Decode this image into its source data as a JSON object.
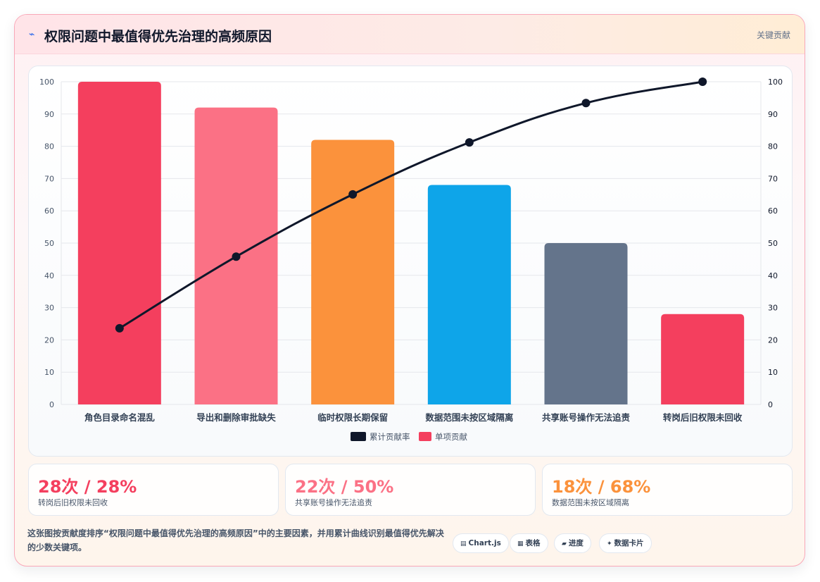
{
  "header": {
    "icon": "lightning-icon",
    "title": "权限问题中最值得优先治理的高频原因",
    "tag": "关键贡献"
  },
  "chart_data": {
    "type": "bar",
    "categories": [
      "角色目录命名混乱",
      "导出和删除审批缺失",
      "临时权限长期保留",
      "数据范围未按区域隔离",
      "共享账号操作无法追责",
      "转岗后旧权限未回收"
    ],
    "series": [
      {
        "name": "单项贡献",
        "type": "bar",
        "values": [
          100,
          92,
          82,
          68,
          50,
          28
        ],
        "colors": [
          "#f43f5e",
          "#fb7185",
          "#fb923c",
          "#0ea5e9",
          "#64748b",
          "#f43f5e"
        ]
      },
      {
        "name": "累计贡献率",
        "type": "line",
        "values": [
          23.6,
          45.8,
          65.1,
          81.2,
          93.4,
          100
        ],
        "color": "#0f172a"
      }
    ],
    "ylim": [
      0,
      100
    ],
    "y2lim": [
      0,
      100
    ],
    "yticks": [
      0,
      10,
      20,
      30,
      40,
      50,
      60,
      70,
      80,
      90,
      100
    ],
    "grid": true,
    "legend": {
      "placement": "bottom",
      "items": [
        {
          "label": "累计贡献率",
          "color": "#0f172a"
        },
        {
          "label": "单项贡献",
          "color": "#f43f5e"
        }
      ]
    }
  },
  "stats": [
    {
      "big": "28次 / 28%",
      "sub": "转岗后旧权限未回收",
      "color": "#f43f5e"
    },
    {
      "big": "22次 / 50%",
      "sub": "共享账号操作无法追责",
      "color": "#fb7185"
    },
    {
      "big": "18次 / 68%",
      "sub": "数据范围未按区域隔离",
      "color": "#fb923c"
    }
  ],
  "note": "这张图按贡献度排序“权限问题中最值得优先治理的高频原因”中的主要因素，并用累计曲线识别最值得优先解决的少数关键项。",
  "pills": [
    {
      "icon": "table-icon",
      "glyph": "▤",
      "label": "Chart.js"
    },
    {
      "icon": "grid-icon",
      "glyph": "▦",
      "label": "表格"
    },
    {
      "icon": "progress-icon",
      "glyph": "▰",
      "label": "进度"
    },
    {
      "icon": "sparkle-icon",
      "glyph": "✦",
      "label": "数据卡片"
    }
  ]
}
